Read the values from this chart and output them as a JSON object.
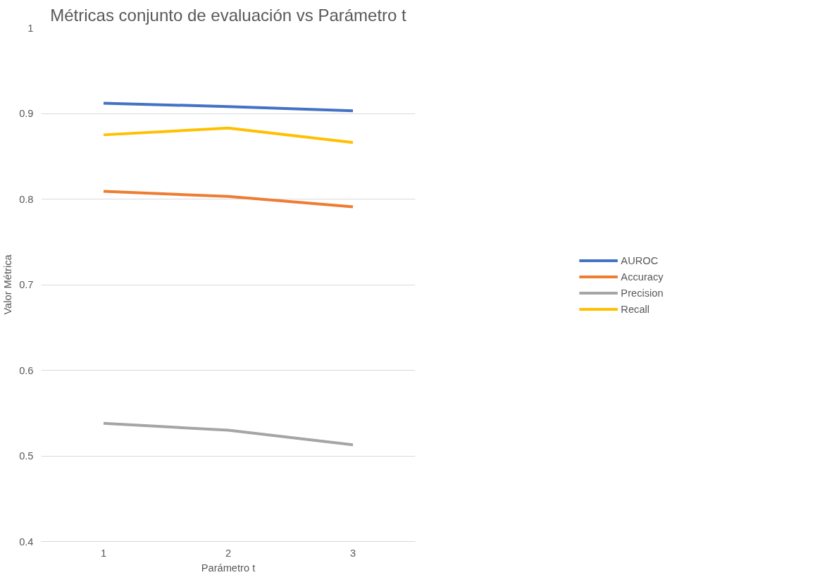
{
  "chart_data": {
    "type": "line",
    "title": "Métricas conjunto de evaluación vs Parámetro t",
    "xlabel": "Parámetro t",
    "ylabel": "Valor Métrica",
    "categories": [
      "1",
      "2",
      "3"
    ],
    "series": [
      {
        "name": "AUROC",
        "color": "#4472c4",
        "values": [
          0.912,
          0.908,
          0.903
        ]
      },
      {
        "name": "Accuracy",
        "color": "#ed7d31",
        "values": [
          0.809,
          0.803,
          0.791
        ]
      },
      {
        "name": "Precision",
        "color": "#a5a5a5",
        "values": [
          0.538,
          0.53,
          0.513
        ]
      },
      {
        "name": "Recall",
        "color": "#ffc000",
        "values": [
          0.875,
          0.883,
          0.866
        ]
      }
    ],
    "ylim": [
      0.4,
      1
    ],
    "yticks": [
      0.4,
      0.5,
      0.6,
      0.7,
      0.8,
      0.9,
      1
    ],
    "grid": "y",
    "legend": "right",
    "marker": "none",
    "line_style": "solid"
  }
}
